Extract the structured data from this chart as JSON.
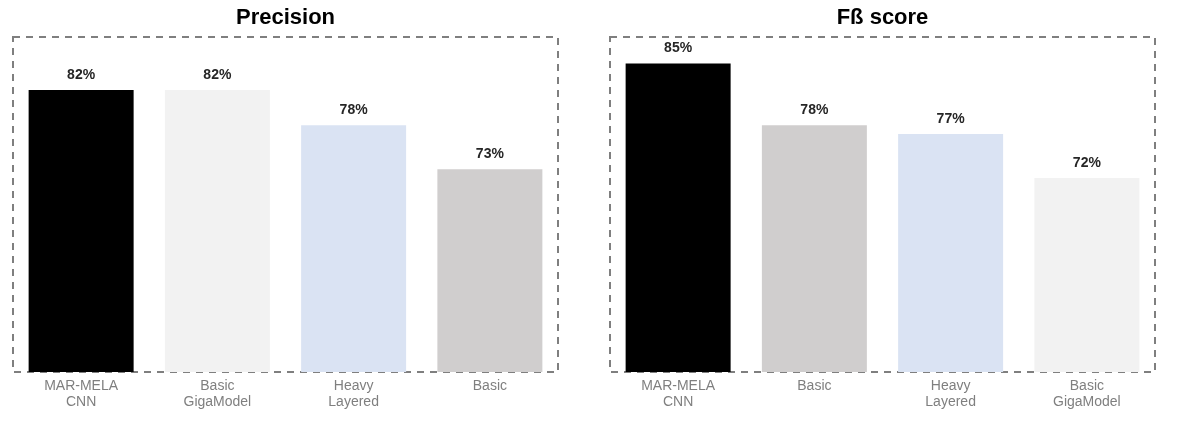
{
  "chart_data": [
    {
      "type": "bar",
      "title": "Precision",
      "categories": [
        "MAR-MELA\nCNN",
        "Basic\nGigaModel",
        "Heavy\nLayered",
        "Basic"
      ],
      "values": [
        82,
        82,
        78,
        73
      ],
      "colors": [
        "#000000",
        "#f2f2f2",
        "#dae3f3",
        "#d0cece"
      ],
      "value_labels": [
        "82%",
        "82%",
        "78%",
        "73%"
      ],
      "ylim": [
        50,
        88
      ],
      "tick_labels": "x",
      "grid": false,
      "legend": false
    },
    {
      "type": "bar",
      "title": "Fß score",
      "categories": [
        "MAR-MELA\nCNN",
        "Basic",
        "Heavy\nLayered",
        "Basic\nGigaModel"
      ],
      "values": [
        85,
        78,
        77,
        72
      ],
      "colors": [
        "#000000",
        "#d0cece",
        "#dae3f3",
        "#f2f2f2"
      ],
      "value_labels": [
        "85%",
        "78%",
        "77%",
        "72%"
      ],
      "ylim": [
        50,
        88
      ],
      "tick_labels": "x",
      "grid": false,
      "legend": false
    }
  ]
}
